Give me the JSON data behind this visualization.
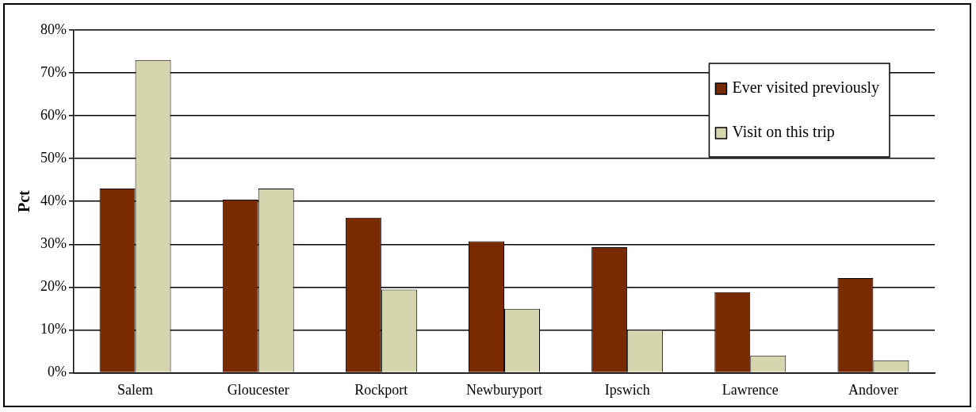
{
  "chart_data": {
    "type": "bar",
    "ylabel": "Pct",
    "categories": [
      "Salem",
      "Gloucester",
      "Rockport",
      "Newburyport",
      "Ipswich",
      "Lawrence",
      "Andover"
    ],
    "series": [
      {
        "name": "Ever visited previously",
        "color": "#7a2a00",
        "values": [
          43,
          40.4,
          36.2,
          30.7,
          29.3,
          18.8,
          22.1
        ]
      },
      {
        "name": "Visit on this trip",
        "color": "#d6d6ae",
        "values": [
          73,
          43,
          19.4,
          14.9,
          10,
          4,
          2.9
        ]
      }
    ],
    "ylim": [
      0,
      80
    ],
    "yticks": [
      {
        "value": 0,
        "label": "0%"
      },
      {
        "value": 10,
        "label": "10%"
      },
      {
        "value": 20,
        "label": "20%"
      },
      {
        "value": 30,
        "label": "30%"
      },
      {
        "value": 40,
        "label": "40%"
      },
      {
        "value": 50,
        "label": "50%"
      },
      {
        "value": 60,
        "label": "60%"
      },
      {
        "value": 70,
        "label": "70%"
      },
      {
        "value": 80,
        "label": "80%"
      }
    ],
    "grid": "y",
    "legend": "top right"
  }
}
